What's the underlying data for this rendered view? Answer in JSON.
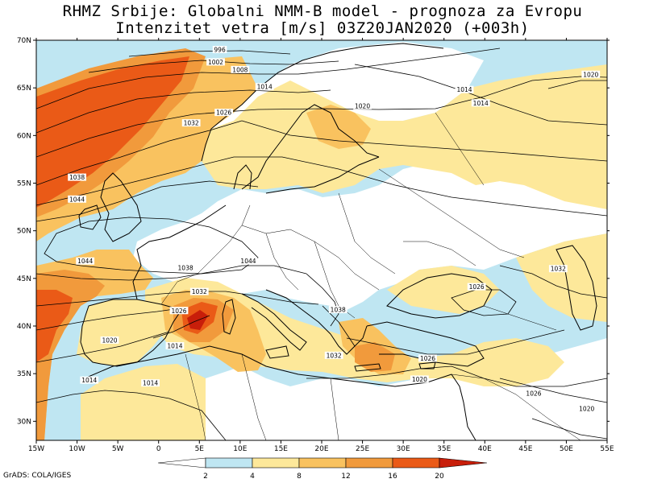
{
  "header": {
    "title": "RHMZ Srbije: Globalni NMM-B model - prognoza za Evropu",
    "subtitle": "Intenzitet vetra [m/s] 03Z20JAN2020 (+003h)"
  },
  "credit": "GrADS: COLA/IGES",
  "map": {
    "lon_range": [
      -15,
      55
    ],
    "lat_range": [
      28,
      70
    ],
    "lon_ticks": [
      {
        "v": -15,
        "label": "15W"
      },
      {
        "v": -10,
        "label": "10W"
      },
      {
        "v": -5,
        "label": "5W"
      },
      {
        "v": 0,
        "label": "0"
      },
      {
        "v": 5,
        "label": "5E"
      },
      {
        "v": 10,
        "label": "10E"
      },
      {
        "v": 15,
        "label": "15E"
      },
      {
        "v": 20,
        "label": "20E"
      },
      {
        "v": 25,
        "label": "25E"
      },
      {
        "v": 30,
        "label": "30E"
      },
      {
        "v": 35,
        "label": "35E"
      },
      {
        "v": 40,
        "label": "40E"
      },
      {
        "v": 45,
        "label": "45E"
      },
      {
        "v": 50,
        "label": "50E"
      },
      {
        "v": 55,
        "label": "55E"
      }
    ],
    "lat_ticks": [
      {
        "v": 30,
        "label": "30N"
      },
      {
        "v": 35,
        "label": "35N"
      },
      {
        "v": 40,
        "label": "40N"
      },
      {
        "v": 45,
        "label": "45N"
      },
      {
        "v": 50,
        "label": "50N"
      },
      {
        "v": 55,
        "label": "55N"
      },
      {
        "v": 60,
        "label": "60N"
      },
      {
        "v": 65,
        "label": "65N"
      },
      {
        "v": 70,
        "label": "70N"
      }
    ],
    "wind_colors": {
      "lt2": "#ffffff",
      "2-4": "#bfe6f2",
      "4-8": "#fde89a",
      "8-12": "#f9c25f",
      "12-16": "#f19a3c",
      "16-20": "#ea5a17",
      "gt20": "#c81e0a",
      "sea_calm": "#bfe6f2"
    },
    "isobar_labels": [
      {
        "text": "996",
        "lon": 7.5,
        "lat": 68.9
      },
      {
        "text": "1002",
        "lon": 7.0,
        "lat": 67.6
      },
      {
        "text": "1008",
        "lon": 10.0,
        "lat": 66.8
      },
      {
        "text": "1014",
        "lon": 13.0,
        "lat": 65.0
      },
      {
        "text": "1020",
        "lon": 25.0,
        "lat": 63.0
      },
      {
        "text": "1014",
        "lon": 37.5,
        "lat": 64.7
      },
      {
        "text": "1014",
        "lon": 39.5,
        "lat": 63.3
      },
      {
        "text": "1020",
        "lon": 53.0,
        "lat": 66.3
      },
      {
        "text": "1026",
        "lon": 8.0,
        "lat": 62.3
      },
      {
        "text": "1032",
        "lon": 4.0,
        "lat": 61.2
      },
      {
        "text": "1038",
        "lon": -10.0,
        "lat": 55.5
      },
      {
        "text": "1044",
        "lon": -10.0,
        "lat": 53.2
      },
      {
        "text": "1044",
        "lon": -9.0,
        "lat": 46.7
      },
      {
        "text": "1044",
        "lon": 11.0,
        "lat": 46.7
      },
      {
        "text": "1038",
        "lon": 3.3,
        "lat": 46.0
      },
      {
        "text": "1032",
        "lon": 5.0,
        "lat": 43.5
      },
      {
        "text": "1026",
        "lon": 2.5,
        "lat": 41.5
      },
      {
        "text": "1014",
        "lon": 2.0,
        "lat": 37.8
      },
      {
        "text": "1020",
        "lon": -6.0,
        "lat": 38.4
      },
      {
        "text": "1014",
        "lon": -8.5,
        "lat": 34.2
      },
      {
        "text": "1014",
        "lon": -1.0,
        "lat": 33.9
      },
      {
        "text": "1038",
        "lon": 22.0,
        "lat": 41.6
      },
      {
        "text": "1032",
        "lon": 21.5,
        "lat": 36.8
      },
      {
        "text": "1026",
        "lon": 33.0,
        "lat": 36.5
      },
      {
        "text": "1020",
        "lon": 32.0,
        "lat": 34.3
      },
      {
        "text": "1026",
        "lon": 39.0,
        "lat": 44.0
      },
      {
        "text": "1032",
        "lon": 49.0,
        "lat": 45.9
      },
      {
        "text": "1026",
        "lon": 46.0,
        "lat": 32.8
      },
      {
        "text": "1020",
        "lon": 52.5,
        "lat": 31.2
      }
    ],
    "legend": {
      "labels": [
        "2",
        "4",
        "8",
        "12",
        "16",
        "20"
      ]
    }
  }
}
